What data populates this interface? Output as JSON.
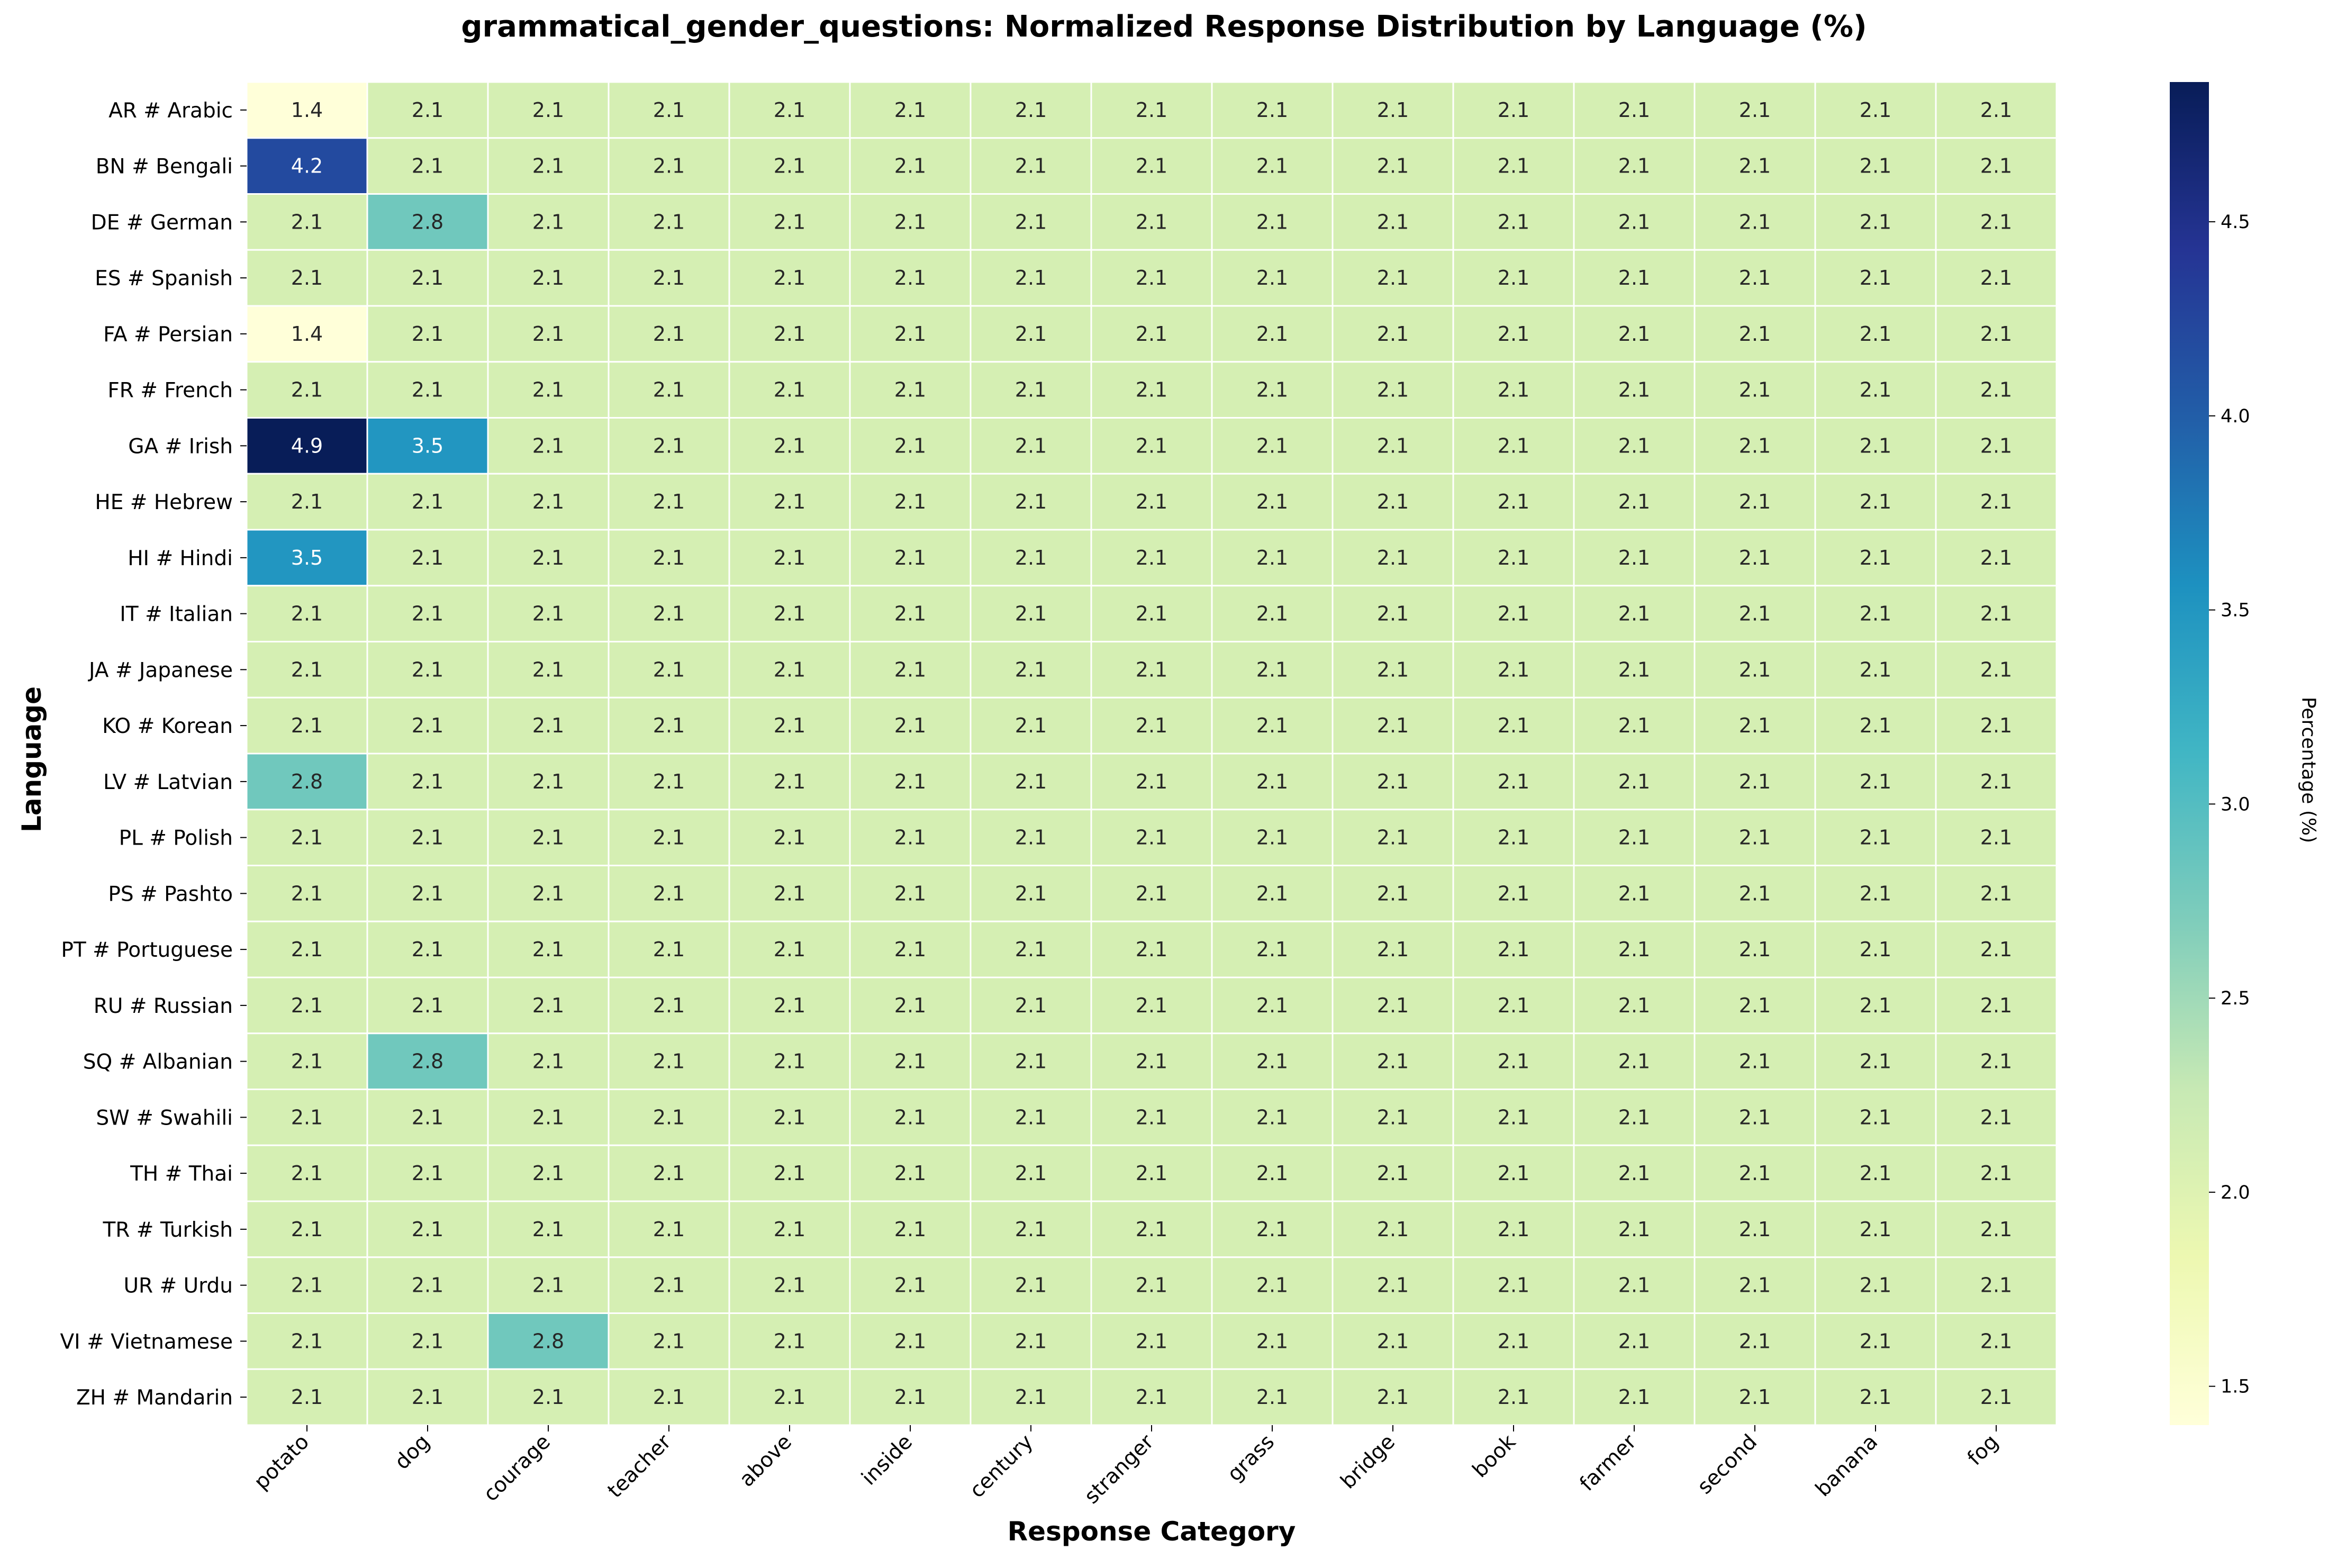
{
  "chart_data": {
    "type": "heatmap",
    "title": "grammatical_gender_questions: Normalized Response Distribution by Language (%)",
    "xlabel": "Response Category",
    "ylabel": "Language",
    "colorbar_label": "Percentage (%)",
    "colormap": "YlGnBu",
    "value_range": [
      1.4,
      4.86
    ],
    "colorbar_ticks": [
      1.5,
      2.0,
      2.5,
      3.0,
      3.5,
      4.0,
      4.5
    ],
    "colorbar_tick_labels": [
      "1.5",
      "2.0",
      "2.5",
      "3.0",
      "3.5",
      "4.0",
      "4.5"
    ],
    "columns": [
      "potato",
      "dog",
      "courage",
      "teacher",
      "above",
      "inside",
      "century",
      "stranger",
      "grass",
      "bridge",
      "book",
      "farmer",
      "second",
      "banana",
      "fog"
    ],
    "rows": [
      "AR # Arabic",
      "BN # Bengali",
      "DE # German",
      "ES # Spanish",
      "FA # Persian",
      "FR # French",
      "GA # Irish",
      "HE # Hebrew",
      "HI # Hindi",
      "IT # Italian",
      "JA # Japanese",
      "KO # Korean",
      "LV # Latvian",
      "PL # Polish",
      "PS # Pashto",
      "PT # Portuguese",
      "RU # Russian",
      "SQ # Albanian",
      "SW # Swahili",
      "TH # Thai",
      "TR # Turkish",
      "UR # Urdu",
      "VI # Vietnamese",
      "ZH # Mandarin"
    ],
    "values": [
      [
        1.4,
        2.1,
        2.1,
        2.1,
        2.1,
        2.1,
        2.1,
        2.1,
        2.1,
        2.1,
        2.1,
        2.1,
        2.1,
        2.1,
        2.1
      ],
      [
        4.2,
        2.1,
        2.1,
        2.1,
        2.1,
        2.1,
        2.1,
        2.1,
        2.1,
        2.1,
        2.1,
        2.1,
        2.1,
        2.1,
        2.1
      ],
      [
        2.1,
        2.8,
        2.1,
        2.1,
        2.1,
        2.1,
        2.1,
        2.1,
        2.1,
        2.1,
        2.1,
        2.1,
        2.1,
        2.1,
        2.1
      ],
      [
        2.1,
        2.1,
        2.1,
        2.1,
        2.1,
        2.1,
        2.1,
        2.1,
        2.1,
        2.1,
        2.1,
        2.1,
        2.1,
        2.1,
        2.1
      ],
      [
        1.4,
        2.1,
        2.1,
        2.1,
        2.1,
        2.1,
        2.1,
        2.1,
        2.1,
        2.1,
        2.1,
        2.1,
        2.1,
        2.1,
        2.1
      ],
      [
        2.1,
        2.1,
        2.1,
        2.1,
        2.1,
        2.1,
        2.1,
        2.1,
        2.1,
        2.1,
        2.1,
        2.1,
        2.1,
        2.1,
        2.1
      ],
      [
        4.9,
        3.5,
        2.1,
        2.1,
        2.1,
        2.1,
        2.1,
        2.1,
        2.1,
        2.1,
        2.1,
        2.1,
        2.1,
        2.1,
        2.1
      ],
      [
        2.1,
        2.1,
        2.1,
        2.1,
        2.1,
        2.1,
        2.1,
        2.1,
        2.1,
        2.1,
        2.1,
        2.1,
        2.1,
        2.1,
        2.1
      ],
      [
        3.5,
        2.1,
        2.1,
        2.1,
        2.1,
        2.1,
        2.1,
        2.1,
        2.1,
        2.1,
        2.1,
        2.1,
        2.1,
        2.1,
        2.1
      ],
      [
        2.1,
        2.1,
        2.1,
        2.1,
        2.1,
        2.1,
        2.1,
        2.1,
        2.1,
        2.1,
        2.1,
        2.1,
        2.1,
        2.1,
        2.1
      ],
      [
        2.1,
        2.1,
        2.1,
        2.1,
        2.1,
        2.1,
        2.1,
        2.1,
        2.1,
        2.1,
        2.1,
        2.1,
        2.1,
        2.1,
        2.1
      ],
      [
        2.1,
        2.1,
        2.1,
        2.1,
        2.1,
        2.1,
        2.1,
        2.1,
        2.1,
        2.1,
        2.1,
        2.1,
        2.1,
        2.1,
        2.1
      ],
      [
        2.8,
        2.1,
        2.1,
        2.1,
        2.1,
        2.1,
        2.1,
        2.1,
        2.1,
        2.1,
        2.1,
        2.1,
        2.1,
        2.1,
        2.1
      ],
      [
        2.1,
        2.1,
        2.1,
        2.1,
        2.1,
        2.1,
        2.1,
        2.1,
        2.1,
        2.1,
        2.1,
        2.1,
        2.1,
        2.1,
        2.1
      ],
      [
        2.1,
        2.1,
        2.1,
        2.1,
        2.1,
        2.1,
        2.1,
        2.1,
        2.1,
        2.1,
        2.1,
        2.1,
        2.1,
        2.1,
        2.1
      ],
      [
        2.1,
        2.1,
        2.1,
        2.1,
        2.1,
        2.1,
        2.1,
        2.1,
        2.1,
        2.1,
        2.1,
        2.1,
        2.1,
        2.1,
        2.1
      ],
      [
        2.1,
        2.1,
        2.1,
        2.1,
        2.1,
        2.1,
        2.1,
        2.1,
        2.1,
        2.1,
        2.1,
        2.1,
        2.1,
        2.1,
        2.1
      ],
      [
        2.1,
        2.8,
        2.1,
        2.1,
        2.1,
        2.1,
        2.1,
        2.1,
        2.1,
        2.1,
        2.1,
        2.1,
        2.1,
        2.1,
        2.1
      ],
      [
        2.1,
        2.1,
        2.1,
        2.1,
        2.1,
        2.1,
        2.1,
        2.1,
        2.1,
        2.1,
        2.1,
        2.1,
        2.1,
        2.1,
        2.1
      ],
      [
        2.1,
        2.1,
        2.1,
        2.1,
        2.1,
        2.1,
        2.1,
        2.1,
        2.1,
        2.1,
        2.1,
        2.1,
        2.1,
        2.1,
        2.1
      ],
      [
        2.1,
        2.1,
        2.1,
        2.1,
        2.1,
        2.1,
        2.1,
        2.1,
        2.1,
        2.1,
        2.1,
        2.1,
        2.1,
        2.1,
        2.1
      ],
      [
        2.1,
        2.1,
        2.1,
        2.1,
        2.1,
        2.1,
        2.1,
        2.1,
        2.1,
        2.1,
        2.1,
        2.1,
        2.1,
        2.1,
        2.1
      ],
      [
        2.1,
        2.1,
        2.8,
        2.1,
        2.1,
        2.1,
        2.1,
        2.1,
        2.1,
        2.1,
        2.1,
        2.1,
        2.1,
        2.1,
        2.1
      ],
      [
        2.1,
        2.1,
        2.1,
        2.1,
        2.1,
        2.1,
        2.1,
        2.1,
        2.1,
        2.1,
        2.1,
        2.1,
        2.1,
        2.1,
        2.1
      ]
    ]
  }
}
